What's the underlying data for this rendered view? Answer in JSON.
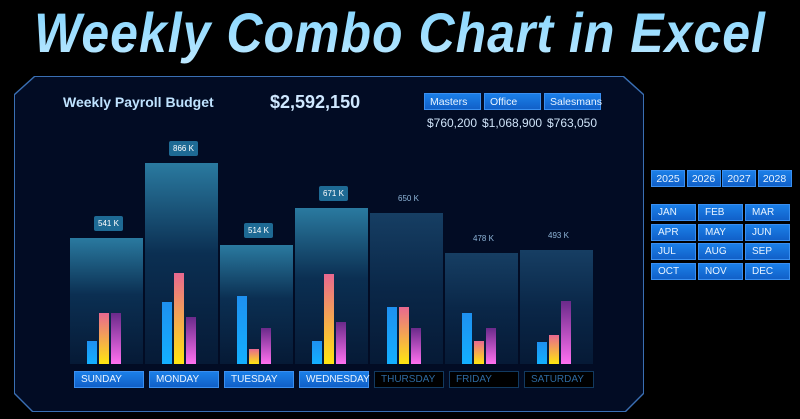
{
  "title": "Weekly Combo Chart in Excel",
  "header": {
    "title": "Weekly Payroll Budget",
    "total": "$2,592,150"
  },
  "legend": [
    {
      "label": "Masters",
      "value": "$760,200",
      "color": "#13a0ff"
    },
    {
      "label": "Office",
      "value": "$1,068,900",
      "color": "#f0a070"
    },
    {
      "label": "Salesmans",
      "value": "$763,050",
      "color": "#b050c8"
    }
  ],
  "years": [
    "2025",
    "2026",
    "2027",
    "2028"
  ],
  "months": [
    "JAN",
    "FEB",
    "MAR",
    "APR",
    "MAY",
    "JUN",
    "JUL",
    "AUG",
    "SEP",
    "OCT",
    "NOV",
    "DEC"
  ],
  "chart_data": {
    "type": "bar",
    "categories": [
      "SUNDAY",
      "MONDAY",
      "TUESDAY",
      "WEDNESDAY",
      "THURSDAY",
      "FRIDAY",
      "SATURDAY"
    ],
    "selected": [
      true,
      true,
      true,
      true,
      false,
      false,
      false
    ],
    "totals": [
      541,
      866,
      514,
      671,
      650,
      478,
      493
    ],
    "total_labels": [
      "541 K",
      "866 K",
      "514 K",
      "671 K",
      "650 K",
      "478 K",
      "493 K"
    ],
    "series": [
      {
        "name": "Masters",
        "values": [
          100,
          268,
          294,
          100,
          247,
          221,
          95
        ]
      },
      {
        "name": "Office",
        "values": [
          220,
          394,
          65,
          390,
          247,
          100,
          126
        ]
      },
      {
        "name": "Salesmans",
        "values": [
          221,
          204,
          155,
          181,
          156,
          157,
          272
        ]
      }
    ]
  }
}
